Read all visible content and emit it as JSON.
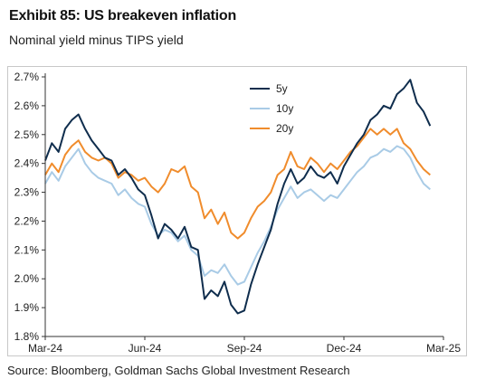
{
  "title": "Exhibit 85: US breakeven inflation",
  "subtitle": "Nominal yield minus TIPS yield",
  "source": "Source: Bloomberg, Goldman Sachs Global Investment Research",
  "chart_data": {
    "type": "line",
    "title": "Exhibit 85: US breakeven inflation",
    "subtitle": "Nominal yield minus TIPS yield",
    "xlabel": "",
    "ylabel": "",
    "ylim": [
      1.8,
      2.7
    ],
    "y_ticks": [
      "1.8%",
      "1.9%",
      "2.0%",
      "2.1%",
      "2.2%",
      "2.3%",
      "2.4%",
      "2.5%",
      "2.6%",
      "2.7%"
    ],
    "y_tick_values": [
      1.8,
      1.9,
      2.0,
      2.1,
      2.2,
      2.3,
      2.4,
      2.5,
      2.6,
      2.7
    ],
    "x_ticks": [
      "Mar-24",
      "Jun-24",
      "Sep-24",
      "Dec-24",
      "Mar-25"
    ],
    "x_tick_positions": [
      0,
      3,
      6,
      9,
      12
    ],
    "x_range": [
      0,
      12
    ],
    "grid": false,
    "legend_position": "top-center",
    "series": [
      {
        "name": "5y",
        "color": "#0f2d4d",
        "x": [
          0,
          0.2,
          0.4,
          0.6,
          0.8,
          1.0,
          1.2,
          1.4,
          1.6,
          1.8,
          2.0,
          2.2,
          2.4,
          2.6,
          2.8,
          3.0,
          3.2,
          3.4,
          3.6,
          3.8,
          4.0,
          4.2,
          4.4,
          4.6,
          4.8,
          5.0,
          5.2,
          5.4,
          5.6,
          5.8,
          6.0,
          6.2,
          6.4,
          6.6,
          6.8,
          7.0,
          7.2,
          7.4,
          7.6,
          7.8,
          8.0,
          8.2,
          8.4,
          8.6,
          8.8,
          9.0,
          9.2,
          9.4,
          9.6,
          9.8,
          10.0,
          10.2,
          10.4,
          10.6,
          10.8,
          11.0,
          11.2,
          11.4,
          11.6
        ],
        "values": [
          2.41,
          2.47,
          2.44,
          2.52,
          2.55,
          2.57,
          2.52,
          2.48,
          2.45,
          2.42,
          2.41,
          2.36,
          2.38,
          2.35,
          2.31,
          2.29,
          2.22,
          2.14,
          2.19,
          2.17,
          2.14,
          2.18,
          2.11,
          2.1,
          1.93,
          1.96,
          1.94,
          1.99,
          1.91,
          1.88,
          1.89,
          1.98,
          2.05,
          2.11,
          2.17,
          2.26,
          2.33,
          2.38,
          2.33,
          2.35,
          2.39,
          2.36,
          2.35,
          2.37,
          2.33,
          2.39,
          2.43,
          2.47,
          2.5,
          2.55,
          2.57,
          2.6,
          2.59,
          2.64,
          2.66,
          2.69,
          2.61,
          2.58,
          2.53
        ]
      },
      {
        "name": "10y",
        "color": "#a9cbe6",
        "x": [
          0,
          0.2,
          0.4,
          0.6,
          0.8,
          1.0,
          1.2,
          1.4,
          1.6,
          1.8,
          2.0,
          2.2,
          2.4,
          2.6,
          2.8,
          3.0,
          3.2,
          3.4,
          3.6,
          3.8,
          4.0,
          4.2,
          4.4,
          4.6,
          4.8,
          5.0,
          5.2,
          5.4,
          5.6,
          5.8,
          6.0,
          6.2,
          6.4,
          6.6,
          6.8,
          7.0,
          7.2,
          7.4,
          7.6,
          7.8,
          8.0,
          8.2,
          8.4,
          8.6,
          8.8,
          9.0,
          9.2,
          9.4,
          9.6,
          9.8,
          10.0,
          10.2,
          10.4,
          10.6,
          10.8,
          11.0,
          11.2,
          11.4,
          11.6
        ],
        "values": [
          2.33,
          2.37,
          2.34,
          2.39,
          2.42,
          2.45,
          2.4,
          2.37,
          2.35,
          2.34,
          2.33,
          2.29,
          2.31,
          2.28,
          2.26,
          2.25,
          2.19,
          2.15,
          2.17,
          2.16,
          2.13,
          2.15,
          2.1,
          2.08,
          2.01,
          2.03,
          2.02,
          2.05,
          2.01,
          1.98,
          1.99,
          2.04,
          2.09,
          2.13,
          2.18,
          2.24,
          2.28,
          2.32,
          2.28,
          2.3,
          2.31,
          2.29,
          2.27,
          2.29,
          2.28,
          2.31,
          2.34,
          2.37,
          2.39,
          2.42,
          2.43,
          2.45,
          2.44,
          2.46,
          2.45,
          2.42,
          2.37,
          2.33,
          2.31
        ]
      },
      {
        "name": "20y",
        "color": "#f08c2c",
        "x": [
          0,
          0.2,
          0.4,
          0.6,
          0.8,
          1.0,
          1.2,
          1.4,
          1.6,
          1.8,
          2.0,
          2.2,
          2.4,
          2.6,
          2.8,
          3.0,
          3.2,
          3.4,
          3.6,
          3.8,
          4.0,
          4.2,
          4.4,
          4.6,
          4.8,
          5.0,
          5.2,
          5.4,
          5.6,
          5.8,
          6.0,
          6.2,
          6.4,
          6.6,
          6.8,
          7.0,
          7.2,
          7.4,
          7.6,
          7.8,
          8.0,
          8.2,
          8.4,
          8.6,
          8.8,
          9.0,
          9.2,
          9.4,
          9.6,
          9.8,
          10.0,
          10.2,
          10.4,
          10.6,
          10.8,
          11.0,
          11.2,
          11.4,
          11.6
        ],
        "values": [
          2.36,
          2.4,
          2.37,
          2.43,
          2.46,
          2.48,
          2.44,
          2.42,
          2.41,
          2.42,
          2.4,
          2.35,
          2.37,
          2.36,
          2.34,
          2.35,
          2.32,
          2.3,
          2.33,
          2.38,
          2.37,
          2.39,
          2.32,
          2.3,
          2.21,
          2.24,
          2.19,
          2.23,
          2.16,
          2.14,
          2.16,
          2.21,
          2.25,
          2.27,
          2.3,
          2.36,
          2.38,
          2.44,
          2.39,
          2.38,
          2.42,
          2.4,
          2.37,
          2.4,
          2.38,
          2.41,
          2.44,
          2.46,
          2.49,
          2.52,
          2.5,
          2.52,
          2.5,
          2.52,
          2.47,
          2.45,
          2.41,
          2.38,
          2.36
        ]
      }
    ]
  }
}
